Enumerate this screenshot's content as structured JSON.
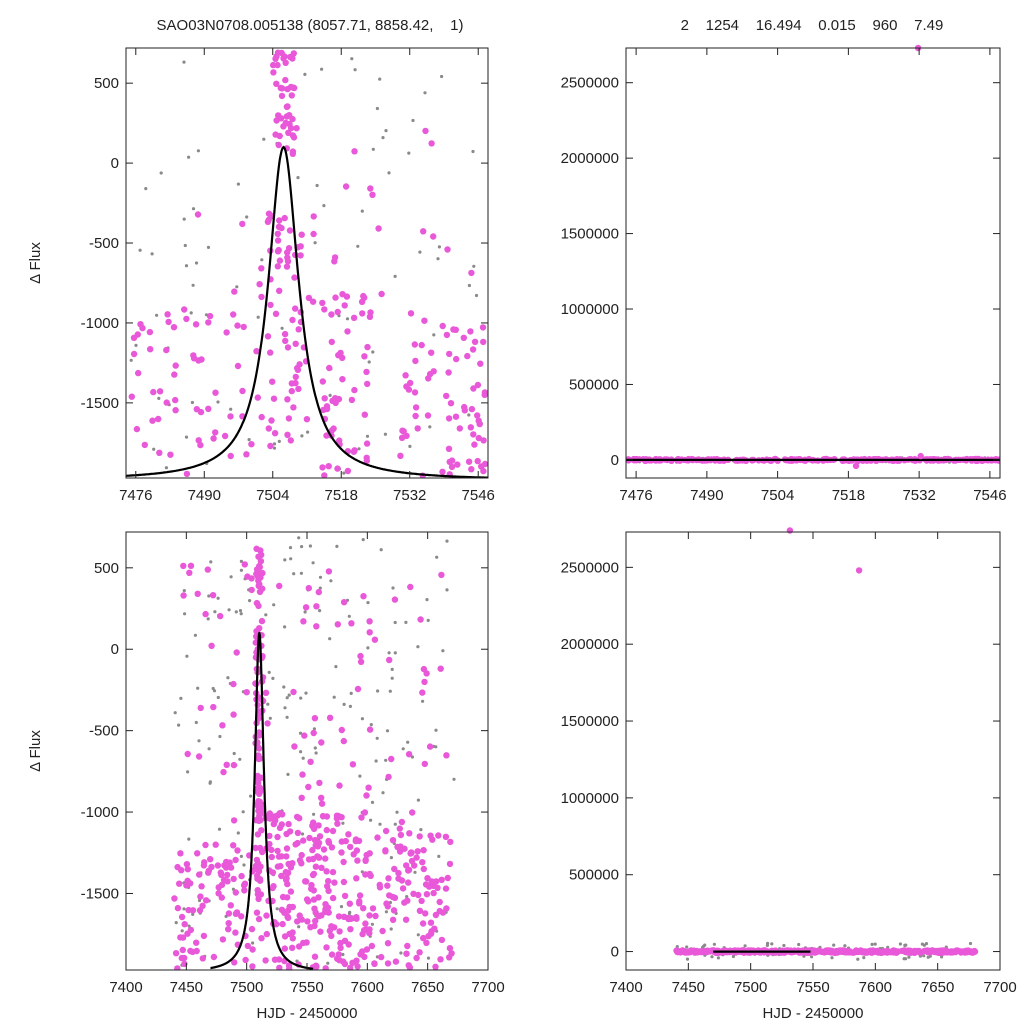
{
  "header": {
    "left": "SAO03N0708.005138 (8057.71, 8858.42,    1)",
    "right": "2    1254    16.494    0.015    960    7.49"
  },
  "colors": {
    "in_window": "#e858d8",
    "background_points": "#8a8a8a",
    "model_curve": "#000000",
    "axes": "#222222"
  },
  "chart_data": [
    {
      "type": "scatter",
      "panel": "top-left",
      "xlabel": "",
      "ylabel": "Δ Flux",
      "xlim": [
        7474,
        7548
      ],
      "ylim": [
        -1970,
        720
      ],
      "xticks": [
        7476,
        7490,
        7504,
        7518,
        7532,
        7546
      ],
      "yticks": [
        500,
        0,
        -500,
        -1000,
        -1500
      ],
      "ytick_labels": [
        "500",
        "0",
        "-500",
        "-1000",
        "-1500"
      ],
      "model": {
        "kind": "lorentzian",
        "center": 7506.2,
        "peak": 100,
        "base": -1985,
        "hwhm": 3.8,
        "x_range": [
          7474,
          7548
        ]
      },
      "clusters": [
        {
          "x": [
            7500,
            7513
          ],
          "y": [
            -1800,
            -300
          ],
          "n": 70,
          "spread": "center"
        },
        {
          "x": [
            7504,
            7509
          ],
          "y": [
            0,
            700
          ],
          "n": 45,
          "spread": "uniform"
        },
        {
          "x": [
            7474,
            7500
          ],
          "y": [
            -1960,
            -900
          ],
          "n": 55,
          "spread": "uniform"
        },
        {
          "x": [
            7514,
            7524
          ],
          "y": [
            -1960,
            -800
          ],
          "n": 55,
          "spread": "uniform"
        },
        {
          "x": [
            7530,
            7548
          ],
          "y": [
            -1960,
            -1000
          ],
          "n": 70,
          "spread": "uniform"
        },
        {
          "x": [
            7485,
            7545
          ],
          "y": [
            -1000,
            300
          ],
          "n": 25,
          "spread": "uniform"
        }
      ],
      "background": {
        "x": [
          7474,
          7548
        ],
        "y": [
          -1960,
          700
        ],
        "n": 90
      }
    },
    {
      "type": "scatter",
      "panel": "top-right",
      "xlabel": "",
      "ylabel": "",
      "xlim": [
        7474,
        7548
      ],
      "ylim": [
        -120000,
        2730000
      ],
      "xticks": [
        7476,
        7490,
        7504,
        7518,
        7532,
        7546
      ],
      "yticks": [
        2500000,
        2000000,
        1500000,
        1000000,
        500000,
        0
      ],
      "ytick_labels": [
        "2500000",
        "2000000",
        "1500000",
        "1000000",
        "500000",
        "0"
      ],
      "model": {
        "kind": "flat",
        "y": 0,
        "x_range": [
          7474,
          7548
        ]
      },
      "clusters": [
        {
          "x": [
            7474,
            7548
          ],
          "y": [
            -6000,
            6000
          ],
          "n": 260,
          "spread": "uniform"
        }
      ],
      "outliers": [
        [
          7531.8,
          2730000
        ],
        [
          7519.5,
          -40000
        ],
        [
          7532.3,
          25000
        ]
      ],
      "background": {
        "x": [
          7474,
          7548
        ],
        "y": [
          -15000,
          15000
        ],
        "n": 60
      }
    },
    {
      "type": "scatter",
      "panel": "bottom-left",
      "xlabel": "HJD - 2450000",
      "ylabel": "Δ Flux",
      "xlim": [
        7400,
        7700
      ],
      "ylim": [
        -1970,
        720
      ],
      "xticks": [
        7400,
        7450,
        7500,
        7550,
        7600,
        7650,
        7700
      ],
      "yticks": [
        500,
        0,
        -500,
        -1000,
        -1500
      ],
      "ytick_labels": [
        "500",
        "0",
        "-500",
        "-1000",
        "-1500"
      ],
      "model": {
        "kind": "lorentzian",
        "center": 7510.5,
        "peak": 100,
        "base": -1985,
        "hwhm": 4.6,
        "x_range": [
          7470,
          7555
        ]
      },
      "clusters": [
        {
          "x": [
            7506,
            7514
          ],
          "y": [
            -1800,
            710
          ],
          "n": 110,
          "spread": "center"
        },
        {
          "x": [
            7440,
            7505
          ],
          "y": [
            -1960,
            -1200
          ],
          "n": 90,
          "spread": "uniform"
        },
        {
          "x": [
            7515,
            7600
          ],
          "y": [
            -1960,
            -1000
          ],
          "n": 220,
          "spread": "uniform"
        },
        {
          "x": [
            7600,
            7670
          ],
          "y": [
            -1960,
            -1100
          ],
          "n": 110,
          "spread": "uniform"
        },
        {
          "x": [
            7445,
            7670
          ],
          "y": [
            -1100,
            560
          ],
          "n": 90,
          "spread": "uniform"
        }
      ],
      "background": {
        "x": [
          7440,
          7672
        ],
        "y": [
          -1960,
          700
        ],
        "n": 200
      }
    },
    {
      "type": "scatter",
      "panel": "bottom-right",
      "xlabel": "HJD - 2450000",
      "ylabel": "",
      "xlim": [
        7400,
        7700
      ],
      "ylim": [
        -120000,
        2730000
      ],
      "xticks": [
        7400,
        7450,
        7500,
        7550,
        7600,
        7650,
        7700
      ],
      "yticks": [
        2500000,
        2000000,
        1500000,
        1000000,
        500000,
        0
      ],
      "ytick_labels": [
        "2500000",
        "2000000",
        "1500000",
        "1000000",
        "500000",
        "0"
      ],
      "model": {
        "kind": "flat",
        "y": 0,
        "x_range": [
          7470,
          7548
        ]
      },
      "clusters": [
        {
          "x": [
            7440,
            7680
          ],
          "y": [
            -8000,
            8000
          ],
          "n": 420,
          "spread": "uniform"
        }
      ],
      "outliers": [
        [
          7531.5,
          2740000
        ],
        [
          7587.0,
          2480000
        ]
      ],
      "background": {
        "x": [
          7440,
          7680
        ],
        "y": [
          -50000,
          60000
        ],
        "n": 90
      }
    }
  ]
}
